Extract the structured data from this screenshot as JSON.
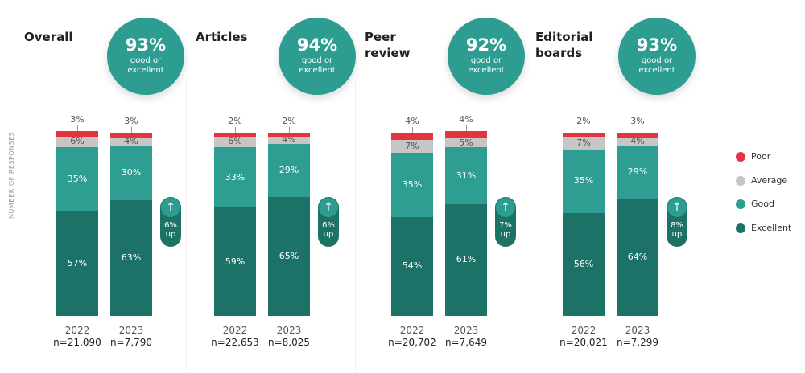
{
  "y_label": "NUMBER OF RESPONSES",
  "legend": [
    {
      "name": "Poor",
      "color": "#e3343f"
    },
    {
      "name": "Average",
      "color": "#c6c6c6"
    },
    {
      "name": "Good",
      "color": "#2f9e92"
    },
    {
      "name": "Excellent",
      "color": "#1c7266"
    }
  ],
  "chart_data": [
    {
      "type": "stacked-bar",
      "title": "Overall",
      "headline": 93,
      "headline_label": "93%",
      "headline_caption": "good or excellent",
      "categories": [
        "2022",
        "2023"
      ],
      "sample_sizes": [
        {
          "value": 21090,
          "label": "n=21,090"
        },
        {
          "value": 7790,
          "label": "n=7,790"
        }
      ],
      "ylim": [
        0,
        100
      ],
      "series": [
        {
          "values": [
            3,
            3
          ],
          "value_labels": [
            "3%",
            "3%"
          ]
        },
        {
          "values": [
            6,
            4
          ],
          "value_labels": [
            "6%",
            "4%"
          ]
        },
        {
          "values": [
            35,
            30
          ],
          "value_labels": [
            "35%",
            "30%"
          ]
        },
        {
          "values": [
            57,
            63
          ],
          "value_labels": [
            "57%",
            "63%"
          ]
        }
      ],
      "change": 6,
      "change_label": "6% up"
    },
    {
      "type": "stacked-bar",
      "title": "Articles",
      "headline": 94,
      "headline_label": "94%",
      "headline_caption": "good or excellent",
      "categories": [
        "2022",
        "2023"
      ],
      "sample_sizes": [
        {
          "value": 22653,
          "label": "n=22,653"
        },
        {
          "value": 8025,
          "label": "n=8,025"
        }
      ],
      "ylim": [
        0,
        100
      ],
      "series": [
        {
          "values": [
            2,
            2
          ],
          "value_labels": [
            "2%",
            "2%"
          ]
        },
        {
          "values": [
            6,
            4
          ],
          "value_labels": [
            "6%",
            "4%"
          ]
        },
        {
          "values": [
            33,
            29
          ],
          "value_labels": [
            "33%",
            "29%"
          ]
        },
        {
          "values": [
            59,
            65
          ],
          "value_labels": [
            "59%",
            "65%"
          ]
        }
      ],
      "change": 6,
      "change_label": "6% up"
    },
    {
      "type": "stacked-bar",
      "title": "Peer review",
      "headline": 92,
      "headline_label": "92%",
      "headline_caption": "good or excellent",
      "categories": [
        "2022",
        "2023"
      ],
      "sample_sizes": [
        {
          "value": 20702,
          "label": "n=20,702"
        },
        {
          "value": 7649,
          "label": "n=7,649"
        }
      ],
      "ylim": [
        0,
        100
      ],
      "series": [
        {
          "values": [
            4,
            4
          ],
          "value_labels": [
            "4%",
            "4%"
          ]
        },
        {
          "values": [
            7,
            5
          ],
          "value_labels": [
            "7%",
            "5%"
          ]
        },
        {
          "values": [
            35,
            31
          ],
          "value_labels": [
            "35%",
            "31%"
          ]
        },
        {
          "values": [
            54,
            61
          ],
          "value_labels": [
            "54%",
            "61%"
          ]
        }
      ],
      "change": 7,
      "change_label": "7% up"
    },
    {
      "type": "stacked-bar",
      "title": "Editorial boards",
      "headline": 93,
      "headline_label": "93%",
      "headline_caption": "good or excellent",
      "categories": [
        "2022",
        "2023"
      ],
      "sample_sizes": [
        {
          "value": 20021,
          "label": "n=20,021"
        },
        {
          "value": 7299,
          "label": "n=7,299"
        }
      ],
      "ylim": [
        0,
        100
      ],
      "series": [
        {
          "values": [
            2,
            3
          ],
          "value_labels": [
            "2%",
            "3%"
          ]
        },
        {
          "values": [
            7,
            4
          ],
          "value_labels": [
            "7%",
            "4%"
          ]
        },
        {
          "values": [
            35,
            29
          ],
          "value_labels": [
            "35%",
            "29%"
          ]
        },
        {
          "values": [
            56,
            64
          ],
          "value_labels": [
            "56%",
            "64%"
          ]
        }
      ],
      "change": 8,
      "change_label": "8% up"
    }
  ]
}
